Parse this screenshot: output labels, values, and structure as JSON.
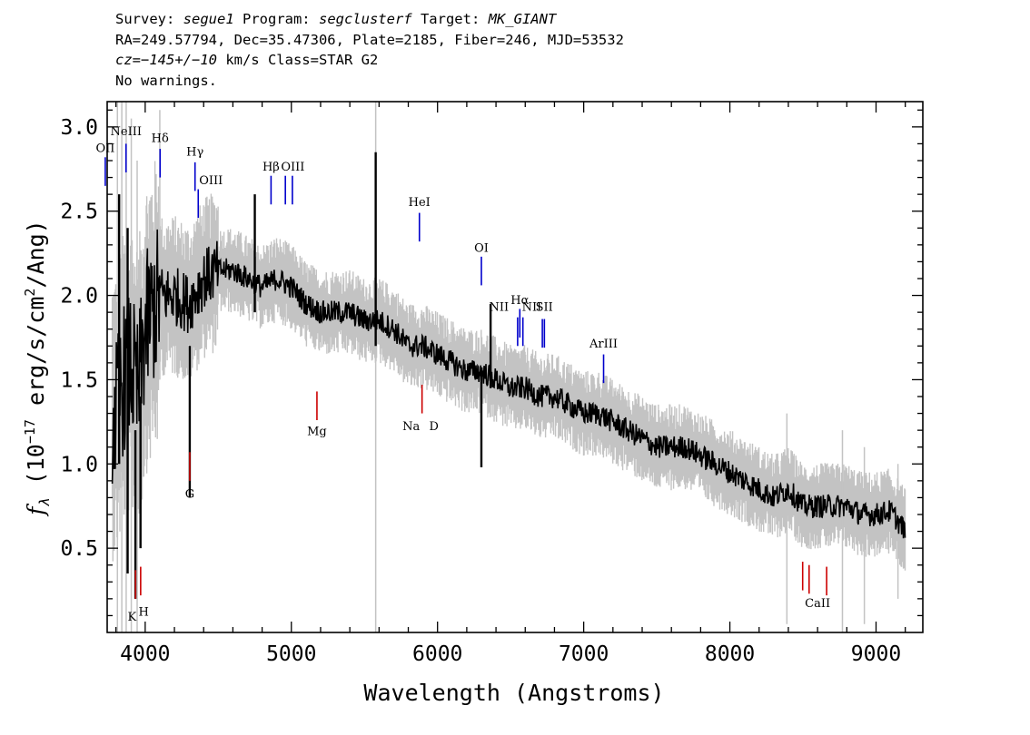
{
  "header": {
    "line1": {
      "survey_label": "Survey: ",
      "survey": "segue1",
      "program_label": " Program: ",
      "program": "segclusterf",
      "target_label": " Target: ",
      "target": "MK_GIANT"
    },
    "line2": "RA=249.57794, Dec=35.47306, Plate=2185, Fiber=246, MJD=53532",
    "line3": {
      "cz": "cz=−145+/−10",
      "rest": " km/s Class=STAR G2"
    },
    "line4": "No warnings."
  },
  "chart_data": {
    "type": "line",
    "xlabel": "Wavelength (Angstroms)",
    "ylabel_main": "f",
    "ylabel_sub": "λ",
    "ylabel_rest": " (10",
    "ylabel_exp": "−17",
    "ylabel_rest2": " erg/s/cm",
    "ylabel_exp2": "2",
    "ylabel_end": "/Ang)",
    "xlim": [
      3740,
      9320
    ],
    "ylim": [
      0.0,
      3.15
    ],
    "xticks": [
      4000,
      5000,
      6000,
      7000,
      8000,
      9000
    ],
    "yticks": [
      0.5,
      1.0,
      1.5,
      2.0,
      2.5,
      3.0
    ],
    "xtick_labels": [
      "4000",
      "5000",
      "6000",
      "7000",
      "8000",
      "9000"
    ],
    "ytick_labels": [
      "0.5",
      "1.0",
      "1.5",
      "2.0",
      "2.5",
      "3.0"
    ],
    "series": [
      {
        "role": "flux",
        "color": "#000000",
        "x": [
          3800,
          3850,
          3900,
          3950,
          4000,
          4100,
          4200,
          4300,
          4400,
          4500,
          4600,
          4700,
          4800,
          4900,
          5000,
          5100,
          5200,
          5300,
          5400,
          5500,
          5600,
          5700,
          5800,
          5900,
          6000,
          6100,
          6200,
          6300,
          6400,
          6500,
          6600,
          6700,
          6800,
          6900,
          7000,
          7100,
          7200,
          7300,
          7400,
          7500,
          7600,
          7700,
          7800,
          7900,
          8000,
          8100,
          8200,
          8300,
          8400,
          8500,
          8600,
          8700,
          8800,
          8900,
          9000,
          9100,
          9200
        ],
        "y": [
          1.3,
          1.5,
          1.6,
          1.4,
          1.8,
          2.0,
          2.0,
          1.95,
          2.1,
          2.15,
          2.15,
          2.1,
          2.05,
          2.1,
          2.05,
          1.95,
          1.9,
          1.9,
          1.9,
          1.85,
          1.85,
          1.8,
          1.7,
          1.7,
          1.65,
          1.6,
          1.55,
          1.55,
          1.5,
          1.45,
          1.45,
          1.4,
          1.4,
          1.35,
          1.3,
          1.3,
          1.25,
          1.2,
          1.15,
          1.1,
          1.1,
          1.1,
          1.05,
          1.0,
          0.95,
          0.9,
          0.85,
          0.8,
          0.85,
          0.75,
          0.75,
          0.75,
          0.75,
          0.7,
          0.7,
          0.72,
          0.6
        ]
      },
      {
        "role": "noise",
        "color": "#c3c3c3"
      }
    ],
    "spikes": [
      {
        "x": 5577,
        "y0": 1.7,
        "y1": 2.85,
        "color": "#000000"
      },
      {
        "x": 6300,
        "y0": 0.98,
        "y1": 1.55,
        "color": "#000000"
      },
      {
        "x": 6363,
        "y0": 1.45,
        "y1": 1.95,
        "color": "#000000"
      },
      {
        "x": 3880,
        "y0": 0.35,
        "y1": 2.4,
        "color": "#000000"
      },
      {
        "x": 3933,
        "y0": 0.2,
        "y1": 1.2,
        "color": "#000000"
      },
      {
        "x": 3968,
        "y0": 0.5,
        "y1": 1.4,
        "color": "#000000"
      },
      {
        "x": 3822,
        "y0": 1.0,
        "y1": 2.6,
        "color": "#000000"
      },
      {
        "x": 4305,
        "y0": 0.8,
        "y1": 1.7,
        "color": "#000000"
      },
      {
        "x": 4750,
        "y0": 1.9,
        "y1": 2.6,
        "color": "#000000"
      }
    ],
    "gray_lines": [
      {
        "x": 5577,
        "y0": 0.0,
        "y1": 3.15
      },
      {
        "x": 3810,
        "y0": 0.0,
        "y1": 3.15
      },
      {
        "x": 3840,
        "y0": 0.0,
        "y1": 3.15
      },
      {
        "x": 3870,
        "y0": 0.0,
        "y1": 3.15
      },
      {
        "x": 3905,
        "y0": 0.0,
        "y1": 3.05
      },
      {
        "x": 3945,
        "y0": 0.0,
        "y1": 2.8
      },
      {
        "x": 4100,
        "y0": 1.5,
        "y1": 3.1
      },
      {
        "x": 8390,
        "y0": 0.05,
        "y1": 1.3
      },
      {
        "x": 8770,
        "y0": 0.0,
        "y1": 1.2
      },
      {
        "x": 8920,
        "y0": 0.05,
        "y1": 1.1
      },
      {
        "x": 9150,
        "y0": 0.2,
        "y1": 1.0
      }
    ],
    "emission_lines": [
      {
        "label": "OII",
        "x": 3727,
        "y0": 2.65,
        "y1": 2.82,
        "lx": 3727,
        "ly": 2.85
      },
      {
        "label": "NeIII",
        "x": 3869,
        "y0": 2.73,
        "y1": 2.9,
        "lx": 3869,
        "ly": 2.95
      },
      {
        "label": "Hδ",
        "x": 4102,
        "y0": 2.7,
        "y1": 2.87,
        "lx": 4102,
        "ly": 2.91
      },
      {
        "label": "Hγ",
        "x": 4341,
        "y0": 2.62,
        "y1": 2.79,
        "lx": 4341,
        "ly": 2.83
      },
      {
        "label": "OIII",
        "x": 4363,
        "y0": 2.46,
        "y1": 2.63,
        "lx": 4450,
        "ly": 2.66
      },
      {
        "label": "Hβ",
        "x": 4861,
        "y0": 2.54,
        "y1": 2.71,
        "lx": 4861,
        "ly": 2.74
      },
      {
        "label": "OIII",
        "x": 4959,
        "y0": 2.54,
        "y1": 2.71,
        "lx": 5010,
        "ly": 2.74
      },
      {
        "label": "",
        "x": 5007,
        "y0": 2.54,
        "y1": 2.71,
        "lx": 5007,
        "ly": 2.74
      },
      {
        "label": "HeI",
        "x": 5876,
        "y0": 2.32,
        "y1": 2.49,
        "lx": 5876,
        "ly": 2.53
      },
      {
        "label": "OI",
        "x": 6300,
        "y0": 2.06,
        "y1": 2.23,
        "lx": 6300,
        "ly": 2.26
      },
      {
        "label": "NII",
        "x": 6548,
        "y0": 1.7,
        "y1": 1.87,
        "lx": 6420,
        "ly": 1.91
      },
      {
        "label": "Hα",
        "x": 6563,
        "y0": 1.75,
        "y1": 1.92,
        "lx": 6563,
        "ly": 1.95
      },
      {
        "label": "NII",
        "x": 6584,
        "y0": 1.7,
        "y1": 1.87,
        "lx": 6645,
        "ly": 1.91
      },
      {
        "label": "SII",
        "x": 6717,
        "y0": 1.69,
        "y1": 1.86,
        "lx": 6730,
        "ly": 1.91
      },
      {
        "label": "",
        "x": 6731,
        "y0": 1.69,
        "y1": 1.86,
        "lx": 6731,
        "ly": 1.9
      },
      {
        "label": "ArIII",
        "x": 7136,
        "y0": 1.48,
        "y1": 1.65,
        "lx": 7136,
        "ly": 1.69
      }
    ],
    "absorption_lines": [
      {
        "label": "K",
        "x": 3934,
        "y0": 0.2,
        "y1": 0.37,
        "lx": 3910,
        "ly": 0.07
      },
      {
        "label": "H",
        "x": 3969,
        "y0": 0.22,
        "y1": 0.39,
        "lx": 3990,
        "ly": 0.1
      },
      {
        "label": "G",
        "x": 4305,
        "y0": 0.9,
        "y1": 1.07,
        "lx": 4305,
        "ly": 0.8
      },
      {
        "label": "Mg",
        "x": 5175,
        "y0": 1.26,
        "y1": 1.43,
        "lx": 5175,
        "ly": 1.17
      },
      {
        "label": "Na",
        "x": 5894,
        "y0": 1.3,
        "y1": 1.47,
        "lx": 5820,
        "ly": 1.2
      },
      {
        "label": "D",
        "x": 5894,
        "y0": 1.3,
        "y1": 1.3,
        "lx": 5975,
        "ly": 1.2
      },
      {
        "label": "",
        "x": 8498,
        "y0": 0.25,
        "y1": 0.42,
        "lx": 8498,
        "ly": 0.35
      },
      {
        "label": "CaII",
        "x": 8542,
        "y0": 0.23,
        "y1": 0.4,
        "lx": 8600,
        "ly": 0.15
      },
      {
        "label": "",
        "x": 8662,
        "y0": 0.22,
        "y1": 0.39,
        "lx": 8662,
        "ly": 0.35
      }
    ],
    "colors": {
      "emission": "#0000cc",
      "absorption": "#cc0000",
      "noise": "#c3c3c3",
      "flux": "#000000"
    }
  }
}
